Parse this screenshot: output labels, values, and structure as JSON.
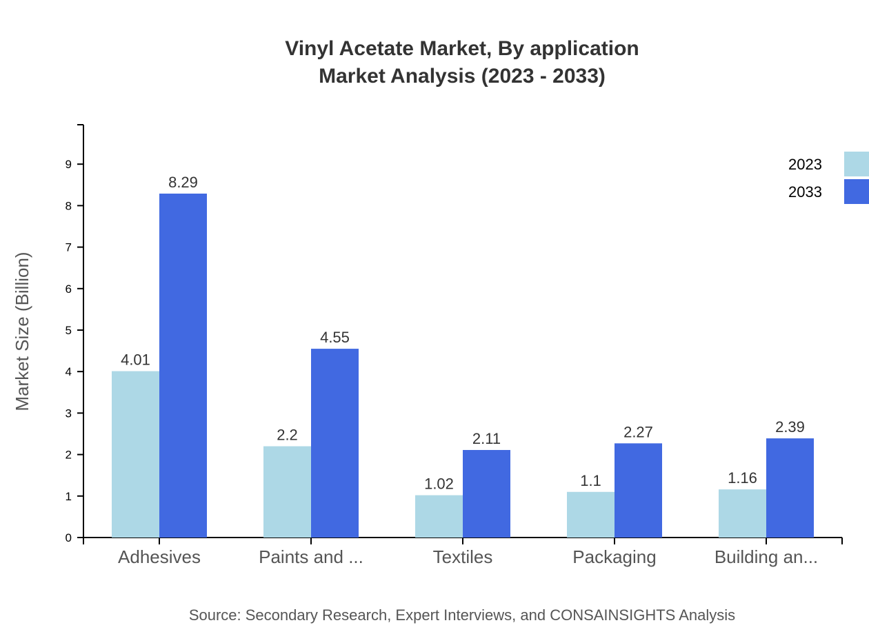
{
  "chart_data": {
    "type": "bar",
    "title": "Vinyl Acetate Market, By application",
    "subtitle": "Market Analysis (2023 - 2033)",
    "xlabel": "",
    "ylabel": "Market Size (Billion)",
    "ylim": [
      0,
      9.95
    ],
    "yticks": [
      0,
      1,
      2,
      3,
      4,
      5,
      6,
      7,
      8,
      9
    ],
    "grid": false,
    "legend_position": "top-right",
    "categories": [
      "Adhesives",
      "Paints and ...",
      "Textiles",
      "Packaging",
      "Building an..."
    ],
    "series": [
      {
        "name": "2023",
        "color": "#add8e6",
        "values": [
          4.01,
          2.2,
          1.02,
          1.1,
          1.16
        ]
      },
      {
        "name": "2033",
        "color": "#4169e1",
        "values": [
          8.29,
          4.55,
          2.11,
          2.27,
          2.39
        ]
      }
    ],
    "source": "Source: Secondary Research, Expert Interviews, and CONSAINSIGHTS Analysis"
  }
}
